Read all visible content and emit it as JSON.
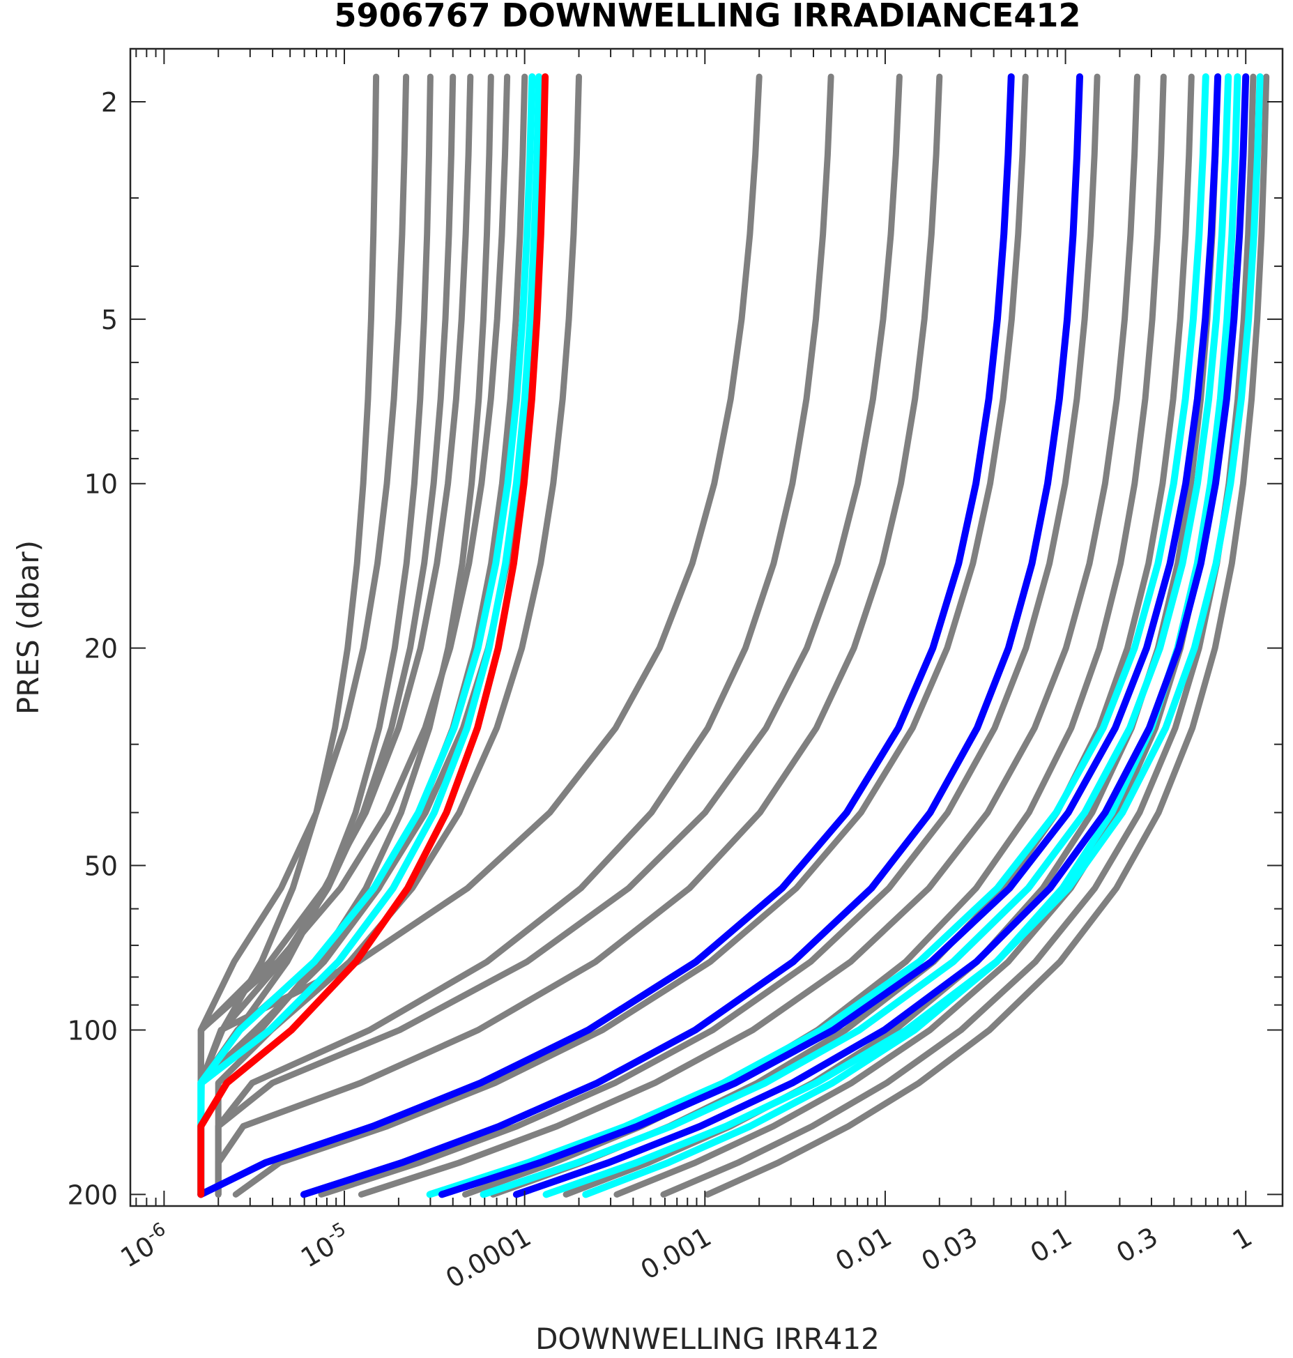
{
  "chart_data": {
    "type": "line",
    "title": "5906767  DOWNWELLING IRRADIANCE412",
    "xlabel": "DOWNWELLING IRR412",
    "ylabel": "PRES (dbar)",
    "x_scale": "log",
    "y_scale": "log",
    "y_reversed": true,
    "xlim": [
      6.5e-07,
      1.6
    ],
    "ylim": [
      1.6,
      210
    ],
    "x_ticks": [
      1e-06,
      1e-05,
      0.0001,
      0.001,
      0.01,
      0.03,
      0.1,
      0.3,
      1
    ],
    "x_tick_labels": [
      {
        "base": "10",
        "exp": "-6"
      },
      {
        "base": "10",
        "exp": "-5"
      },
      {
        "text": "0.0001"
      },
      {
        "text": "0.001"
      },
      {
        "text": "0.01"
      },
      {
        "text": "0.03"
      },
      {
        "text": "0.1"
      },
      {
        "text": "0.3"
      },
      {
        "text": "1"
      }
    ],
    "y_ticks": [
      2,
      5,
      10,
      20,
      50,
      100,
      200
    ],
    "y_tick_labels": [
      "2",
      "5",
      "10",
      "20",
      "50",
      "100",
      "200"
    ],
    "grid": false,
    "legend": "none",
    "colors": {
      "gray": "#808080",
      "cyan": "#00ffff",
      "blue": "#0000ff",
      "red": "#ff0000"
    },
    "pressure_levels": [
      1.8,
      2.5,
      3.5,
      5,
      7,
      10,
      14,
      20,
      28,
      40,
      55,
      75,
      100,
      125,
      150,
      175,
      200
    ],
    "series": [
      {
        "color_key": "gray",
        "surface": 1.5e-05,
        "kd": 0.02,
        "floor": 1.6e-06
      },
      {
        "color_key": "gray",
        "surface": 2.2e-05,
        "kd": 0.03,
        "floor": 1.6e-06
      },
      {
        "color_key": "gray",
        "surface": 3e-05,
        "kd": 0.025,
        "floor": 1.6e-06
      },
      {
        "color_key": "gray",
        "surface": 4e-05,
        "kd": 0.03,
        "floor": 1.6e-06
      },
      {
        "color_key": "gray",
        "surface": 5e-05,
        "kd": 0.035,
        "floor": 1.6e-06
      },
      {
        "color_key": "gray",
        "surface": 6.5e-05,
        "kd": 0.03,
        "floor": 1.6e-06
      },
      {
        "color_key": "gray",
        "surface": 8e-05,
        "kd": 0.04,
        "floor": 1.6e-06
      },
      {
        "color_key": "gray",
        "surface": 0.0001,
        "kd": 0.035,
        "floor": 1.6e-06
      },
      {
        "color_key": "gray",
        "surface": 0.00013,
        "kd": 0.04,
        "floor": 1.6e-06
      },
      {
        "color_key": "gray",
        "surface": 0.0002,
        "kd": 0.04,
        "floor": 2e-06
      },
      {
        "color_key": "gray",
        "surface": 0.002,
        "kd": 0.07,
        "floor": 1.6e-06
      },
      {
        "color_key": "gray",
        "surface": 0.005,
        "kd": 0.06,
        "floor": 2e-06
      },
      {
        "color_key": "gray",
        "surface": 0.012,
        "kd": 0.065,
        "floor": 2e-06
      },
      {
        "color_key": "gray",
        "surface": 0.02,
        "kd": 0.06,
        "floor": 2e-06
      },
      {
        "color_key": "gray",
        "surface": 0.06,
        "kd": 0.055,
        "floor": 2.5e-06
      },
      {
        "color_key": "gray",
        "surface": 0.15,
        "kd": 0.05,
        "floor": 3e-06
      },
      {
        "color_key": "gray",
        "surface": 0.25,
        "kd": 0.05,
        "floor": 3e-06
      },
      {
        "color_key": "gray",
        "surface": 0.35,
        "kd": 0.045,
        "floor": 4e-06
      },
      {
        "color_key": "gray",
        "surface": 0.5,
        "kd": 0.045,
        "floor": 5e-06
      },
      {
        "color_key": "gray",
        "surface": 0.7,
        "kd": 0.042,
        "floor": 6e-06
      },
      {
        "color_key": "gray",
        "surface": 0.9,
        "kd": 0.04,
        "floor": 8e-06
      },
      {
        "color_key": "gray",
        "surface": 1.1,
        "kd": 0.038,
        "floor": 1e-05
      },
      {
        "color_key": "gray",
        "surface": 1.3,
        "kd": 0.036,
        "floor": 1.2e-05
      },
      {
        "color_key": "cyan",
        "surface": 0.00011,
        "kd": 0.038,
        "floor": 1.6e-06
      },
      {
        "color_key": "cyan",
        "surface": 0.00012,
        "kd": 0.035,
        "floor": 1.6e-06
      },
      {
        "color_key": "cyan",
        "surface": 0.6,
        "kd": 0.05,
        "floor": 1.6e-06
      },
      {
        "color_key": "cyan",
        "surface": 0.8,
        "kd": 0.048,
        "floor": 1.6e-06
      },
      {
        "color_key": "cyan",
        "surface": 1.2,
        "kd": 0.046,
        "floor": 1.6e-06
      },
      {
        "color_key": "cyan",
        "surface": 0.9,
        "kd": 0.042,
        "floor": 2e-06
      },
      {
        "color_key": "blue",
        "surface": 0.05,
        "kd": 0.055,
        "floor": 1.6e-06
      },
      {
        "color_key": "blue",
        "surface": 0.12,
        "kd": 0.05,
        "floor": 1.6e-06
      },
      {
        "color_key": "blue",
        "surface": 0.7,
        "kd": 0.05,
        "floor": 1.6e-06
      },
      {
        "color_key": "blue",
        "surface": 1.0,
        "kd": 0.047,
        "floor": 1.6e-06
      },
      {
        "color_key": "red",
        "surface": 0.00013,
        "kd": 0.033,
        "floor": 1.6e-06
      }
    ]
  }
}
